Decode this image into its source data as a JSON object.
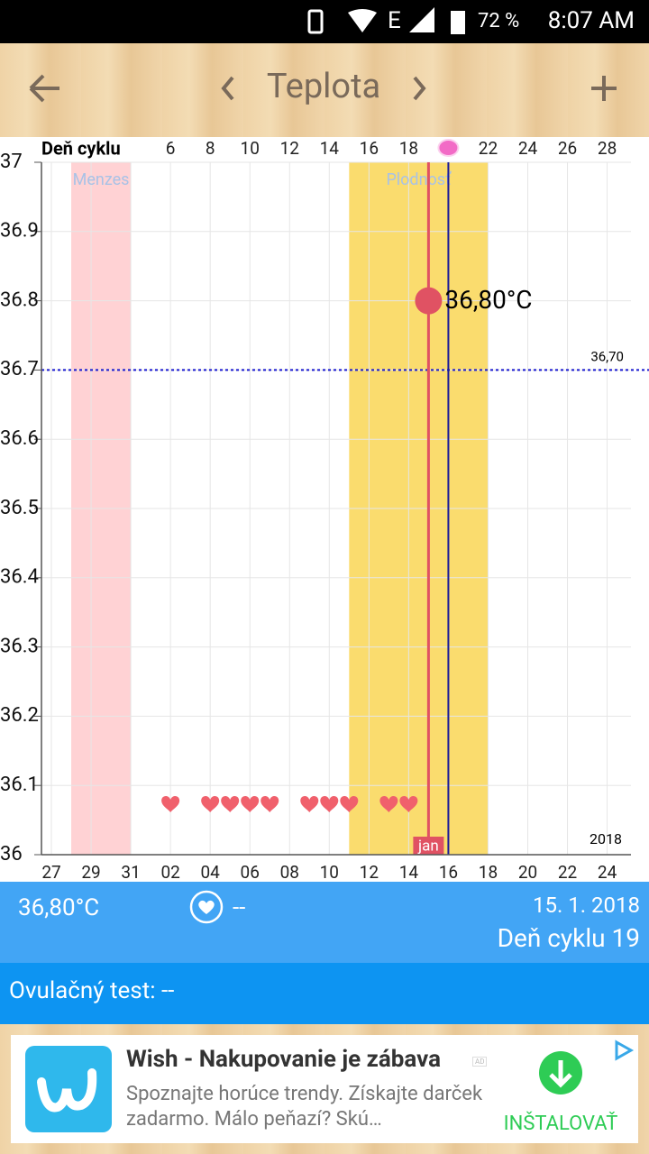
{
  "status_bar": {
    "network": "E",
    "battery": "72 %",
    "time": "8:07 AM"
  },
  "toolbar": {
    "title": "Teplota"
  },
  "chart_data": {
    "type": "scatter",
    "x_label_top": "Deň cyklu",
    "x": [
      19
    ],
    "values": [
      36.8
    ],
    "value_labels": [
      "36,80°C"
    ],
    "color": "#e05263",
    "xlim": [
      -0.5,
      29.2
    ],
    "ylim": [
      36,
      37
    ],
    "yticks": [
      36,
      36.1,
      36.2,
      36.3,
      36.4,
      36.5,
      36.6,
      36.7,
      36.8,
      36.9,
      37
    ],
    "xticks_top": [
      6,
      8,
      10,
      12,
      14,
      16,
      18,
      22,
      24,
      26,
      28
    ],
    "xticks": [
      {
        "value": 0,
        "label": "27"
      },
      {
        "value": 2,
        "label": "29"
      },
      {
        "value": 4,
        "label": "31"
      },
      {
        "value": 6,
        "label": "02"
      },
      {
        "value": 8,
        "label": "04"
      },
      {
        "value": 10,
        "label": "06"
      },
      {
        "value": 12,
        "label": "08"
      },
      {
        "value": 14,
        "label": "10"
      },
      {
        "value": 16,
        "label": "12"
      },
      {
        "value": 18,
        "label": "14"
      },
      {
        "value": 20,
        "label": "16"
      },
      {
        "value": 22,
        "label": "18"
      },
      {
        "value": 24,
        "label": "20"
      },
      {
        "value": 26,
        "label": "22"
      },
      {
        "value": 28,
        "label": "24"
      }
    ],
    "grid": true,
    "bands": [
      {
        "label": "Menzes",
        "range": [
          1,
          4
        ],
        "color": "#ffd2d4"
      },
      {
        "label": "Plodnosť",
        "range": [
          15,
          22
        ],
        "color": "#fadc6e"
      }
    ],
    "coverline": {
      "value": 36.7,
      "label": "36,70",
      "color": "#1a1ad0"
    },
    "selected_day": {
      "x": 19,
      "label": "jan",
      "color": "#e05263"
    },
    "today_line": {
      "x": 20,
      "color": "#1a1a9a"
    },
    "ovulation_day": 20,
    "heart_days": [
      6,
      8,
      9,
      10,
      11,
      13,
      14,
      15,
      17,
      18
    ],
    "year": "2018"
  },
  "info": {
    "temperature": "36,80°C",
    "intercourse": "--",
    "date": "15. 1. 2018",
    "cycle_day": "Deň cyklu 19",
    "ovulation_test": "Ovulačný test: --"
  },
  "ad": {
    "title": "Wish - Nakupovanie je zábava",
    "badge": "AD",
    "description": "Spoznajte horúce trendy. Získajte darček zadarmo. Málo peňazí? Skú…",
    "button": "INŠTALOVAŤ"
  }
}
